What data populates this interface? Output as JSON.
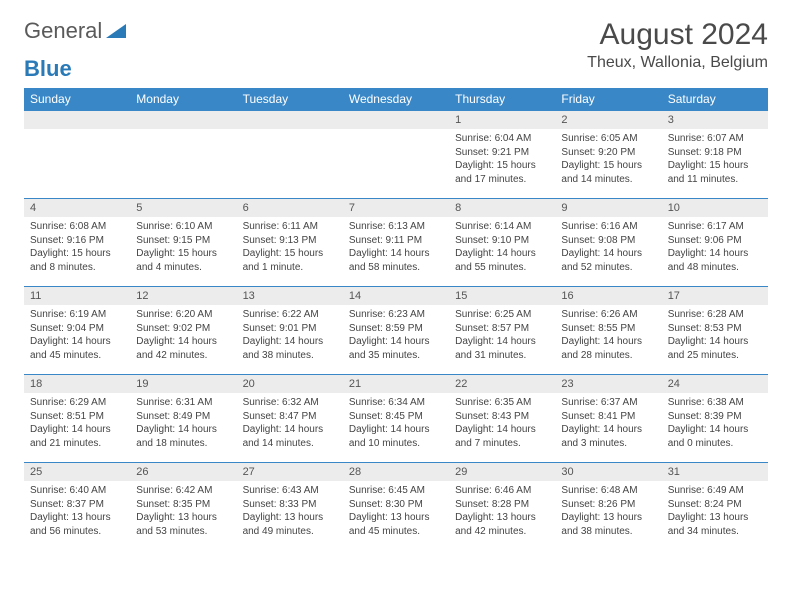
{
  "logo": {
    "text1": "General",
    "text2": "Blue"
  },
  "title": "August 2024",
  "location": "Theux, Wallonia, Belgium",
  "colors": {
    "header_bar": "#3a87c7",
    "daynum_bg": "#ececec",
    "row_border": "#3a87c7",
    "logo_gray": "#5a5a5a",
    "logo_blue": "#2a7ab8"
  },
  "weekdays": [
    "Sunday",
    "Monday",
    "Tuesday",
    "Wednesday",
    "Thursday",
    "Friday",
    "Saturday"
  ],
  "weeks": [
    [
      {
        "n": "",
        "sr": "",
        "ss": "",
        "dl": ""
      },
      {
        "n": "",
        "sr": "",
        "ss": "",
        "dl": ""
      },
      {
        "n": "",
        "sr": "",
        "ss": "",
        "dl": ""
      },
      {
        "n": "",
        "sr": "",
        "ss": "",
        "dl": ""
      },
      {
        "n": "1",
        "sr": "6:04 AM",
        "ss": "9:21 PM",
        "dl": "15 hours and 17 minutes."
      },
      {
        "n": "2",
        "sr": "6:05 AM",
        "ss": "9:20 PM",
        "dl": "15 hours and 14 minutes."
      },
      {
        "n": "3",
        "sr": "6:07 AM",
        "ss": "9:18 PM",
        "dl": "15 hours and 11 minutes."
      }
    ],
    [
      {
        "n": "4",
        "sr": "6:08 AM",
        "ss": "9:16 PM",
        "dl": "15 hours and 8 minutes."
      },
      {
        "n": "5",
        "sr": "6:10 AM",
        "ss": "9:15 PM",
        "dl": "15 hours and 4 minutes."
      },
      {
        "n": "6",
        "sr": "6:11 AM",
        "ss": "9:13 PM",
        "dl": "15 hours and 1 minute."
      },
      {
        "n": "7",
        "sr": "6:13 AM",
        "ss": "9:11 PM",
        "dl": "14 hours and 58 minutes."
      },
      {
        "n": "8",
        "sr": "6:14 AM",
        "ss": "9:10 PM",
        "dl": "14 hours and 55 minutes."
      },
      {
        "n": "9",
        "sr": "6:16 AM",
        "ss": "9:08 PM",
        "dl": "14 hours and 52 minutes."
      },
      {
        "n": "10",
        "sr": "6:17 AM",
        "ss": "9:06 PM",
        "dl": "14 hours and 48 minutes."
      }
    ],
    [
      {
        "n": "11",
        "sr": "6:19 AM",
        "ss": "9:04 PM",
        "dl": "14 hours and 45 minutes."
      },
      {
        "n": "12",
        "sr": "6:20 AM",
        "ss": "9:02 PM",
        "dl": "14 hours and 42 minutes."
      },
      {
        "n": "13",
        "sr": "6:22 AM",
        "ss": "9:01 PM",
        "dl": "14 hours and 38 minutes."
      },
      {
        "n": "14",
        "sr": "6:23 AM",
        "ss": "8:59 PM",
        "dl": "14 hours and 35 minutes."
      },
      {
        "n": "15",
        "sr": "6:25 AM",
        "ss": "8:57 PM",
        "dl": "14 hours and 31 minutes."
      },
      {
        "n": "16",
        "sr": "6:26 AM",
        "ss": "8:55 PM",
        "dl": "14 hours and 28 minutes."
      },
      {
        "n": "17",
        "sr": "6:28 AM",
        "ss": "8:53 PM",
        "dl": "14 hours and 25 minutes."
      }
    ],
    [
      {
        "n": "18",
        "sr": "6:29 AM",
        "ss": "8:51 PM",
        "dl": "14 hours and 21 minutes."
      },
      {
        "n": "19",
        "sr": "6:31 AM",
        "ss": "8:49 PM",
        "dl": "14 hours and 18 minutes."
      },
      {
        "n": "20",
        "sr": "6:32 AM",
        "ss": "8:47 PM",
        "dl": "14 hours and 14 minutes."
      },
      {
        "n": "21",
        "sr": "6:34 AM",
        "ss": "8:45 PM",
        "dl": "14 hours and 10 minutes."
      },
      {
        "n": "22",
        "sr": "6:35 AM",
        "ss": "8:43 PM",
        "dl": "14 hours and 7 minutes."
      },
      {
        "n": "23",
        "sr": "6:37 AM",
        "ss": "8:41 PM",
        "dl": "14 hours and 3 minutes."
      },
      {
        "n": "24",
        "sr": "6:38 AM",
        "ss": "8:39 PM",
        "dl": "14 hours and 0 minutes."
      }
    ],
    [
      {
        "n": "25",
        "sr": "6:40 AM",
        "ss": "8:37 PM",
        "dl": "13 hours and 56 minutes."
      },
      {
        "n": "26",
        "sr": "6:42 AM",
        "ss": "8:35 PM",
        "dl": "13 hours and 53 minutes."
      },
      {
        "n": "27",
        "sr": "6:43 AM",
        "ss": "8:33 PM",
        "dl": "13 hours and 49 minutes."
      },
      {
        "n": "28",
        "sr": "6:45 AM",
        "ss": "8:30 PM",
        "dl": "13 hours and 45 minutes."
      },
      {
        "n": "29",
        "sr": "6:46 AM",
        "ss": "8:28 PM",
        "dl": "13 hours and 42 minutes."
      },
      {
        "n": "30",
        "sr": "6:48 AM",
        "ss": "8:26 PM",
        "dl": "13 hours and 38 minutes."
      },
      {
        "n": "31",
        "sr": "6:49 AM",
        "ss": "8:24 PM",
        "dl": "13 hours and 34 minutes."
      }
    ]
  ],
  "labels": {
    "sunrise": "Sunrise:",
    "sunset": "Sunset:",
    "daylight": "Daylight:"
  }
}
